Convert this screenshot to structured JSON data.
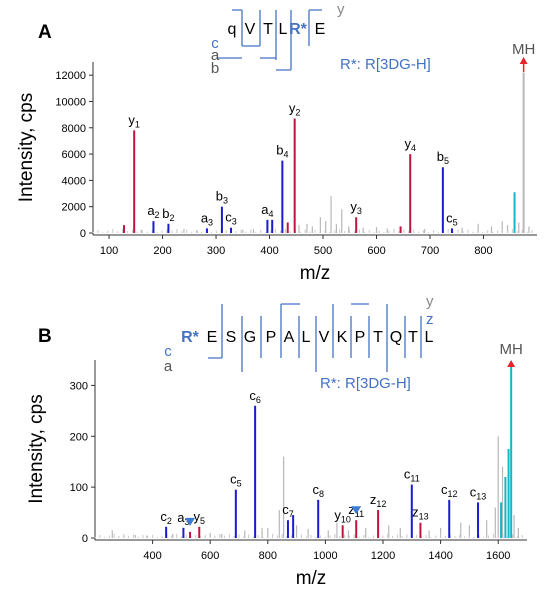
{
  "chart_data": [
    {
      "panel_label": "A",
      "type": "bar",
      "xlabel": "m/z",
      "ylabel": "Intensity, cps",
      "xlim": [
        70,
        900
      ],
      "ylim": [
        0,
        13000
      ],
      "xticks": [
        100,
        200,
        300,
        400,
        500,
        600,
        700,
        800
      ],
      "yticks": [
        0,
        2000,
        4000,
        6000,
        8000,
        10000,
        12000
      ],
      "sequence": [
        "q",
        "V",
        "T",
        "L",
        "R*",
        "E"
      ],
      "modified_residue": "R*",
      "ion_series": [
        "c",
        "a",
        "b"
      ],
      "y_series_label": "y",
      "modification_note": "R*: R[3DG-H]",
      "precursor_label": "MH",
      "peaks": [
        {
          "mz": 128,
          "intensity": 600,
          "series": "y",
          "label": ""
        },
        {
          "mz": 147,
          "intensity": 7800,
          "series": "y",
          "label": "y",
          "sub": "1"
        },
        {
          "mz": 183,
          "intensity": 900,
          "series": "b",
          "label": "a",
          "sub": "2"
        },
        {
          "mz": 211,
          "intensity": 700,
          "series": "b",
          "label": "b",
          "sub": "2"
        },
        {
          "mz": 283,
          "intensity": 350,
          "series": "b",
          "label": "a",
          "sub": "3"
        },
        {
          "mz": 311,
          "intensity": 2000,
          "series": "b",
          "label": "b",
          "sub": "3"
        },
        {
          "mz": 328,
          "intensity": 400,
          "series": "b",
          "label": "c",
          "sub": "3"
        },
        {
          "mz": 396,
          "intensity": 1000,
          "series": "b",
          "label": "a",
          "sub": "4"
        },
        {
          "mz": 405,
          "intensity": 1000,
          "series": "b",
          "label": ""
        },
        {
          "mz": 424,
          "intensity": 5500,
          "series": "b",
          "label": "b",
          "sub": "4"
        },
        {
          "mz": 434,
          "intensity": 800,
          "series": "y",
          "label": ""
        },
        {
          "mz": 447,
          "intensity": 8700,
          "series": "y",
          "label": "y",
          "sub": "2"
        },
        {
          "mz": 562,
          "intensity": 1200,
          "series": "y",
          "label": "y",
          "sub": "3"
        },
        {
          "mz": 645,
          "intensity": 500,
          "series": "y",
          "label": ""
        },
        {
          "mz": 663,
          "intensity": 6000,
          "series": "y",
          "label": "y",
          "sub": "4"
        },
        {
          "mz": 724,
          "intensity": 5000,
          "series": "b",
          "label": "b",
          "sub": "5"
        },
        {
          "mz": 741,
          "intensity": 350,
          "series": "b",
          "label": "c",
          "sub": "5"
        },
        {
          "mz": 858,
          "intensity": 3100,
          "series": "precursor",
          "label": ""
        },
        {
          "mz": 875,
          "intensity": 12200,
          "series": "unassigned",
          "label": ""
        }
      ],
      "noise": [
        {
          "mz": 160,
          "intensity": 250
        },
        {
          "mz": 240,
          "intensity": 300
        },
        {
          "mz": 265,
          "intensity": 200
        },
        {
          "mz": 350,
          "intensity": 250
        },
        {
          "mz": 370,
          "intensity": 300
        },
        {
          "mz": 455,
          "intensity": 600
        },
        {
          "mz": 470,
          "intensity": 700
        },
        {
          "mz": 480,
          "intensity": 500
        },
        {
          "mz": 495,
          "intensity": 1200
        },
        {
          "mz": 505,
          "intensity": 900
        },
        {
          "mz": 515,
          "intensity": 2800
        },
        {
          "mz": 525,
          "intensity": 700
        },
        {
          "mz": 535,
          "intensity": 1800
        },
        {
          "mz": 548,
          "intensity": 500
        },
        {
          "mz": 575,
          "intensity": 400
        },
        {
          "mz": 600,
          "intensity": 450
        },
        {
          "mz": 620,
          "intensity": 350
        },
        {
          "mz": 690,
          "intensity": 300
        },
        {
          "mz": 760,
          "intensity": 400
        },
        {
          "mz": 790,
          "intensity": 700
        },
        {
          "mz": 815,
          "intensity": 500
        },
        {
          "mz": 835,
          "intensity": 900
        },
        {
          "mz": 845,
          "intensity": 600
        },
        {
          "mz": 866,
          "intensity": 800
        },
        {
          "mz": 885,
          "intensity": 500
        }
      ]
    },
    {
      "panel_label": "B",
      "type": "bar",
      "xlabel": "m/z",
      "ylabel": "Intensity, cps",
      "xlim": [
        200,
        1700
      ],
      "ylim": [
        0,
        350
      ],
      "xticks": [
        400,
        600,
        800,
        1000,
        1200,
        1400,
        1600
      ],
      "yticks": [
        0,
        100,
        200,
        300
      ],
      "sequence": [
        "R*",
        "E",
        "S",
        "G",
        "P",
        "A",
        "L",
        "V",
        "K",
        "P",
        "T",
        "Q",
        "T",
        "L"
      ],
      "modified_residue": "R*",
      "ion_series": [
        "c",
        "a"
      ],
      "y_series_labels": [
        "y",
        "z"
      ],
      "modification_note": "R*: R[3DG-H]",
      "precursor_label": "MH",
      "peaks": [
        {
          "mz": 447,
          "intensity": 22,
          "series": "b",
          "label": "c",
          "sub": "2"
        },
        {
          "mz": 507,
          "intensity": 20,
          "series": "b",
          "label": "a",
          "sub": "3"
        },
        {
          "mz": 530,
          "intensity": 12,
          "series": "y",
          "label": ""
        },
        {
          "mz": 562,
          "intensity": 22,
          "series": "y",
          "label": "y",
          "sub": "5"
        },
        {
          "mz": 689,
          "intensity": 95,
          "series": "b",
          "label": "c",
          "sub": "5"
        },
        {
          "mz": 756,
          "intensity": 260,
          "series": "b",
          "label": "c",
          "sub": "6"
        },
        {
          "mz": 870,
          "intensity": 35,
          "series": "b",
          "label": "c",
          "sub": "7"
        },
        {
          "mz": 888,
          "intensity": 45,
          "series": "b",
          "label": ""
        },
        {
          "mz": 975,
          "intensity": 75,
          "series": "b",
          "label": "c",
          "sub": "8"
        },
        {
          "mz": 1060,
          "intensity": 25,
          "series": "y",
          "label": "y",
          "sub": "10"
        },
        {
          "mz": 1107,
          "intensity": 35,
          "series": "y",
          "label": "z",
          "sub": "11"
        },
        {
          "mz": 1183,
          "intensity": 55,
          "series": "y",
          "label": "z",
          "sub": "12"
        },
        {
          "mz": 1300,
          "intensity": 105,
          "series": "b",
          "label": "c",
          "sub": "11"
        },
        {
          "mz": 1330,
          "intensity": 30,
          "series": "y",
          "label": "z",
          "sub": "13"
        },
        {
          "mz": 1430,
          "intensity": 75,
          "series": "b",
          "label": "c",
          "sub": "12"
        },
        {
          "mz": 1530,
          "intensity": 70,
          "series": "b",
          "label": "c",
          "sub": "13"
        },
        {
          "mz": 1610,
          "intensity": 70,
          "series": "precursor",
          "label": ""
        },
        {
          "mz": 1625,
          "intensity": 120,
          "series": "precursor",
          "label": ""
        },
        {
          "mz": 1636,
          "intensity": 175,
          "series": "precursor",
          "label": ""
        },
        {
          "mz": 1645,
          "intensity": 340,
          "series": "precursor",
          "label": ""
        }
      ],
      "noise": [
        {
          "mz": 260,
          "intensity": 15
        },
        {
          "mz": 300,
          "intensity": 5
        },
        {
          "mz": 340,
          "intensity": 6
        },
        {
          "mz": 380,
          "intensity": 5
        },
        {
          "mz": 470,
          "intensity": 8
        },
        {
          "mz": 600,
          "intensity": 10
        },
        {
          "mz": 640,
          "intensity": 8
        },
        {
          "mz": 720,
          "intensity": 15
        },
        {
          "mz": 780,
          "intensity": 20
        },
        {
          "mz": 800,
          "intensity": 20
        },
        {
          "mz": 840,
          "intensity": 55
        },
        {
          "mz": 855,
          "intensity": 160
        },
        {
          "mz": 900,
          "intensity": 25
        },
        {
          "mz": 940,
          "intensity": 18
        },
        {
          "mz": 1010,
          "intensity": 15
        },
        {
          "mz": 1040,
          "intensity": 30
        },
        {
          "mz": 1080,
          "intensity": 15
        },
        {
          "mz": 1140,
          "intensity": 20
        },
        {
          "mz": 1220,
          "intensity": 25
        },
        {
          "mz": 1260,
          "intensity": 20
        },
        {
          "mz": 1360,
          "intensity": 15
        },
        {
          "mz": 1400,
          "intensity": 20
        },
        {
          "mz": 1470,
          "intensity": 30
        },
        {
          "mz": 1500,
          "intensity": 25
        },
        {
          "mz": 1560,
          "intensity": 35
        },
        {
          "mz": 1590,
          "intensity": 60
        },
        {
          "mz": 1600,
          "intensity": 200
        },
        {
          "mz": 1615,
          "intensity": 140
        },
        {
          "mz": 1655,
          "intensity": 45
        },
        {
          "mz": 1670,
          "intensity": 20
        }
      ],
      "arrows": [
        {
          "mz": 530,
          "intensity": 12
        },
        {
          "mz": 1107,
          "intensity": 35
        }
      ]
    }
  ],
  "colors": {
    "b_ion": "#1a1ad0",
    "y_ion": "#c0143c",
    "precursor": "#1ab3c8",
    "noise": "#b8b8b8",
    "sequence_bracket": "#4472c4",
    "mh_arrow": "#e8232a",
    "marker_arrow": "#3a7bd5"
  }
}
